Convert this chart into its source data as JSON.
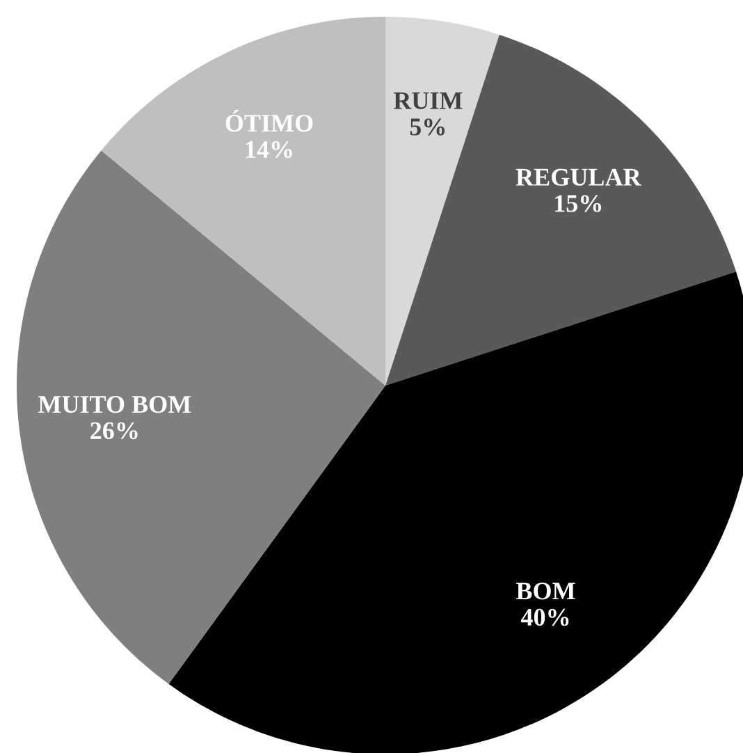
{
  "chart_data": {
    "type": "pie",
    "categories": [
      "RUIM",
      "REGULAR",
      "BOM",
      "MUITO BOM",
      "ÓTIMO"
    ],
    "values": [
      5,
      15,
      40,
      26,
      14
    ],
    "colors": [
      "#d9d9d9",
      "#595959",
      "#000000",
      "#7f7f7f",
      "#bfbfbf"
    ],
    "value_labels": [
      "5%",
      "15%",
      "40%",
      "26%",
      "14%"
    ],
    "legend": false
  }
}
